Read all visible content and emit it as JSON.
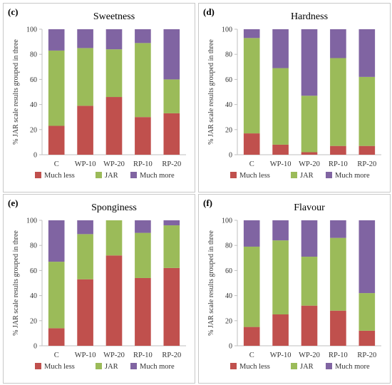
{
  "colors": {
    "much_less": "#C0504D",
    "jar": "#9BBB59",
    "much_more": "#8064A2",
    "axis": "#bfbfbf"
  },
  "chart_data": [
    {
      "type": "bar",
      "stacked": true,
      "panel_letter": "(c)",
      "title": "Sweetness",
      "ylabel": "% JAR scale results grouped in three",
      "ylim": [
        0,
        100
      ],
      "yticks": [
        "0",
        "20",
        "40",
        "60",
        "80",
        "100"
      ],
      "categories": [
        "C",
        "WP-10",
        "WP-20",
        "RP-10",
        "RP-20"
      ],
      "series": [
        {
          "name": "Much less",
          "values": [
            23,
            39,
            46,
            30,
            33
          ]
        },
        {
          "name": "JAR",
          "values": [
            60,
            46,
            38,
            59,
            27
          ]
        },
        {
          "name": "Much more",
          "values": [
            17,
            15,
            16,
            11,
            40
          ]
        }
      ],
      "legend_position": "bottom"
    },
    {
      "type": "bar",
      "stacked": true,
      "panel_letter": "(d)",
      "title": "Hardness",
      "ylabel": "% JAR scale results grouped in three",
      "ylim": [
        0,
        100
      ],
      "yticks": [
        "0",
        "20",
        "40",
        "60",
        "80",
        "100"
      ],
      "categories": [
        "C",
        "WP-10",
        "WP-20",
        "RP-10",
        "RP-20"
      ],
      "series": [
        {
          "name": "Much less",
          "values": [
            17,
            8,
            2,
            7,
            7
          ]
        },
        {
          "name": "JAR",
          "values": [
            76,
            61,
            45,
            70,
            55
          ]
        },
        {
          "name": "Much more",
          "values": [
            7,
            31,
            53,
            23,
            38
          ]
        }
      ],
      "legend_position": "bottom"
    },
    {
      "type": "bar",
      "stacked": true,
      "panel_letter": "(e)",
      "title": "Sponginess",
      "ylabel": "% JAR scale results grouped in three",
      "ylim": [
        0,
        100
      ],
      "yticks": [
        "0",
        "20",
        "40",
        "60",
        "80",
        "100"
      ],
      "categories": [
        "C",
        "WP-10",
        "WP-20",
        "RP-10",
        "RP-20"
      ],
      "series": [
        {
          "name": "Much less",
          "values": [
            14,
            53,
            72,
            54,
            62
          ]
        },
        {
          "name": "JAR",
          "values": [
            53,
            36,
            28,
            36,
            34
          ]
        },
        {
          "name": "Much more",
          "values": [
            33,
            11,
            0,
            10,
            4
          ]
        }
      ],
      "legend_position": "bottom"
    },
    {
      "type": "bar",
      "stacked": true,
      "panel_letter": "(f)",
      "title": "Flavour",
      "ylabel": "% JAR scale results grouped in three",
      "ylim": [
        0,
        100
      ],
      "yticks": [
        "0",
        "20",
        "40",
        "60",
        "80",
        "100"
      ],
      "categories": [
        "C",
        "WP-10",
        "WP-20",
        "RP-10",
        "RP-20"
      ],
      "series": [
        {
          "name": "Much less",
          "values": [
            15,
            25,
            32,
            28,
            12
          ]
        },
        {
          "name": "JAR",
          "values": [
            64,
            59,
            39,
            58,
            30
          ]
        },
        {
          "name": "Much more",
          "values": [
            21,
            16,
            29,
            14,
            58
          ]
        }
      ],
      "legend_position": "bottom"
    }
  ]
}
